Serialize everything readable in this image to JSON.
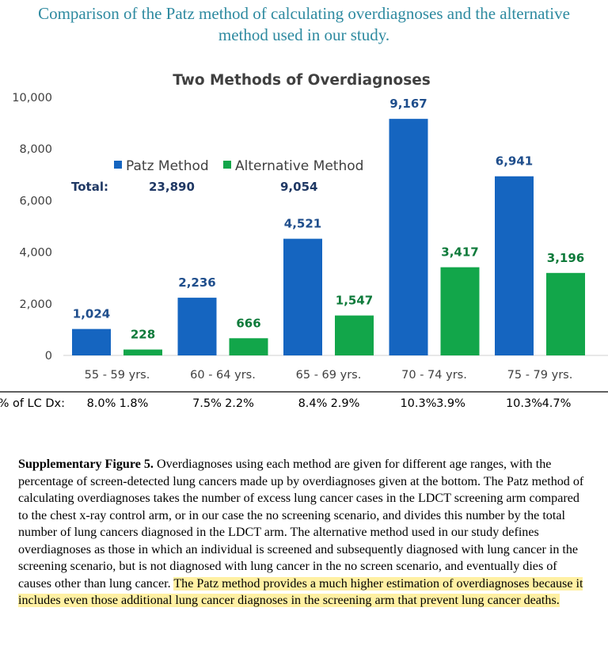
{
  "page": {
    "heading_line1": "Comparison of the Patz method of calculating overdiagnoses and the alternative",
    "heading_line2": "method used in our study."
  },
  "colors": {
    "heading": "#2e8aa0",
    "patz": "#1565c0",
    "alternative": "#12a64a",
    "label_blue": "#1f4e8c",
    "label_green": "#0e7a3a",
    "axis_text": "#404040",
    "highlight": "#fff0a3"
  },
  "chart_data": {
    "type": "bar",
    "title": "Two Methods of Overdiagnoses",
    "categories": [
      "55 - 59 yrs.",
      "60 - 64 yrs.",
      "65 - 69 yrs.",
      "70 - 74 yrs.",
      "75 - 79 yrs."
    ],
    "series": [
      {
        "name": "Patz Method",
        "values": [
          1024,
          2236,
          4521,
          9167,
          6941
        ],
        "labels": [
          "1,024",
          "2,236",
          "4,521",
          "9,167",
          "6,941"
        ],
        "pct_of_lc_dx": [
          "8.0%",
          "7.5%",
          "8.4%",
          "10.3%",
          "10.3%"
        ]
      },
      {
        "name": "Alternative Method",
        "values": [
          228,
          666,
          1547,
          3417,
          3196
        ],
        "labels": [
          "228",
          "666",
          "1,547",
          "3,417",
          "3,196"
        ],
        "pct_of_lc_dx": [
          "1.8%",
          "2.2%",
          "2.9%",
          "3.9%",
          "4.7%"
        ]
      }
    ],
    "ylim": [
      0,
      10000
    ],
    "yticks": [
      0,
      2000,
      4000,
      6000,
      8000,
      10000
    ],
    "ytick_labels": [
      "0",
      "2,000",
      "4,000",
      "6,000",
      "8,000",
      "10,000"
    ],
    "grid": false,
    "legend_position": "upper-left",
    "totals": {
      "label": "Total:",
      "patz": "23,890",
      "alternative": "9,054"
    },
    "pct_row_label": "% of LC Dx:",
    "xlabel": "",
    "ylabel": ""
  },
  "caption": {
    "label": "Supplementary Figure 5.",
    "text": " Overdiagnoses using each method are given for different age ranges, with the percentage of screen-detected lung cancers made up by overdiagnoses given at the bottom. The Patz method of calculating overdiagnoses takes the number of excess lung cancer cases in the LDCT screening arm compared to the chest x-ray control arm, or in our case the no screening scenario, and divides this number by the total number of lung cancers diagnosed in the LDCT arm. The alternative method used in our study defines overdiagnoses as those in which an individual is screened and subsequently diagnosed with lung cancer in the screening scenario, but is not diagnosed with lung cancer in the no screen scenario, and eventually dies of causes other than lung cancer. ",
    "highlight": "The Patz method provides a much higher estimation of overdiagnoses because it includes even those additional lung cancer diagnoses in the screening arm that prevent lung cancer deaths."
  }
}
